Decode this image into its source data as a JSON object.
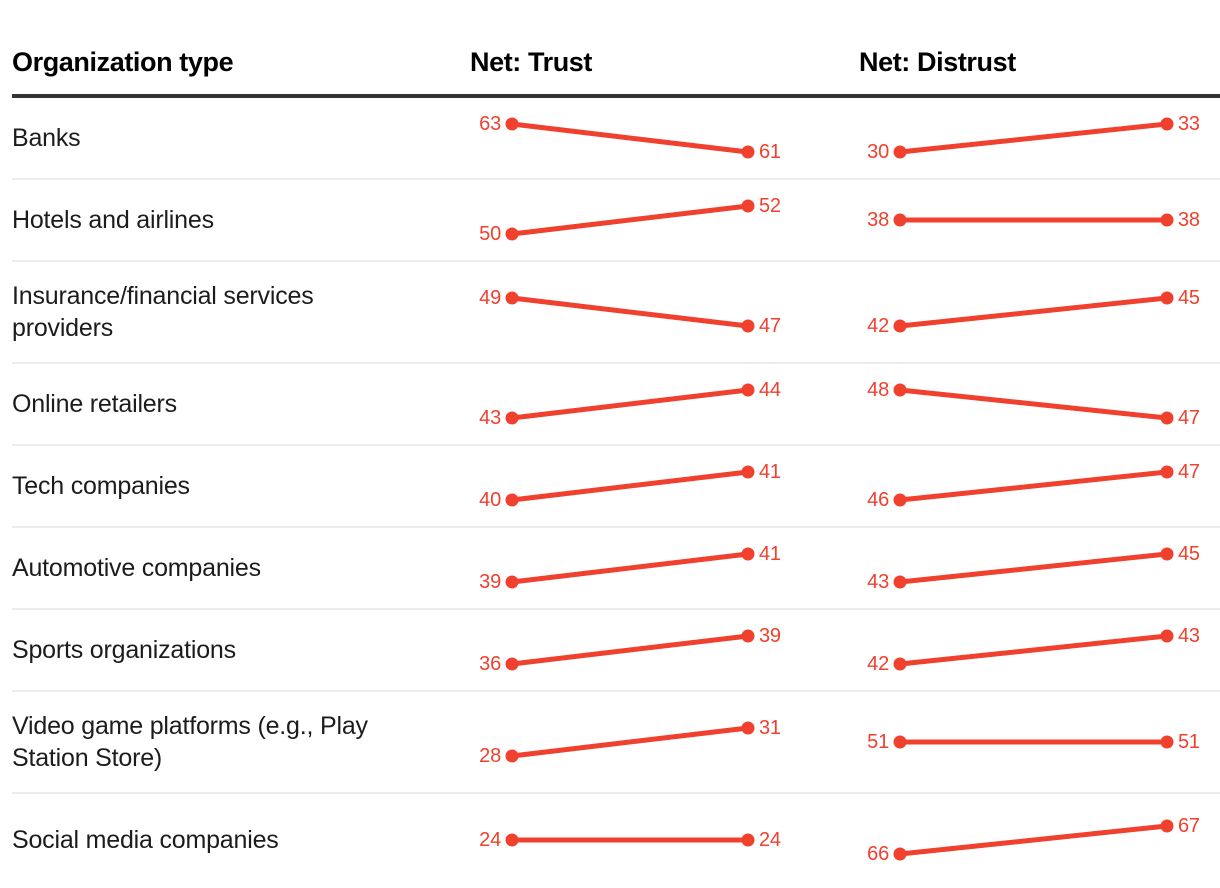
{
  "table": {
    "headers": [
      "Organization type",
      "Net: Trust",
      "Net: Distrust"
    ]
  },
  "chart_data": {
    "type": "line",
    "subtype": "paired-slopegraph-table",
    "columns": [
      "Organization type",
      "Net: Trust",
      "Net: Distrust"
    ],
    "points_per_series": 2,
    "rows": [
      {
        "organization": "Banks",
        "trust": [
          63,
          61
        ],
        "distrust": [
          30,
          33
        ]
      },
      {
        "organization": "Hotels and airlines",
        "trust": [
          50,
          52
        ],
        "distrust": [
          38,
          38
        ]
      },
      {
        "organization": "Insurance/financial services providers",
        "trust": [
          49,
          47
        ],
        "distrust": [
          42,
          45
        ]
      },
      {
        "organization": "Online retailers",
        "trust": [
          43,
          44
        ],
        "distrust": [
          48,
          47
        ]
      },
      {
        "organization": "Tech companies",
        "trust": [
          40,
          41
        ],
        "distrust": [
          46,
          47
        ]
      },
      {
        "organization": "Automotive companies",
        "trust": [
          39,
          41
        ],
        "distrust": [
          43,
          45
        ]
      },
      {
        "organization": "Sports organizations",
        "trust": [
          36,
          39
        ],
        "distrust": [
          42,
          43
        ]
      },
      {
        "organization": "Video game platforms (e.g., Play Station Store)",
        "trust": [
          28,
          31
        ],
        "distrust": [
          51,
          51
        ]
      },
      {
        "organization": "Social media companies",
        "trust": [
          24,
          24
        ],
        "distrust": [
          66,
          67
        ]
      }
    ]
  },
  "colors": {
    "accent": "#f0402e",
    "header_rule": "#333333",
    "row_divider": "#ececec",
    "text": "#1c1c1c"
  }
}
